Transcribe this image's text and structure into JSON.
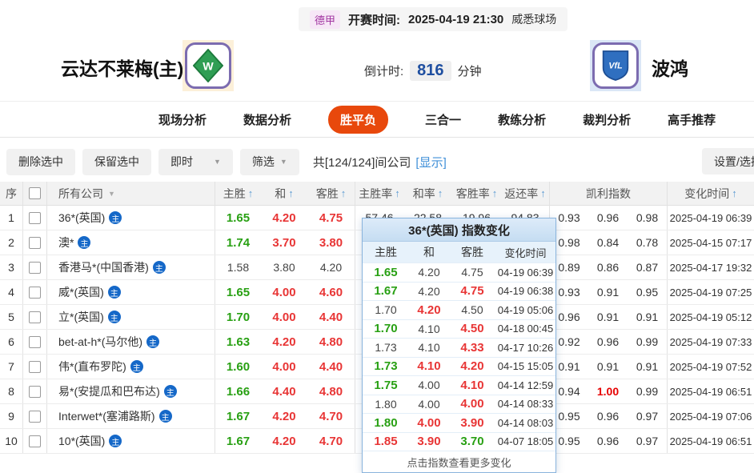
{
  "colors": {
    "accent_tab": "#e8480c",
    "odds_up_green": "#28a013",
    "odds_down_red": "#e83535",
    "kelly_red": "#e60000",
    "link_blue": "#3f8fd8",
    "badge_blue": "#1568c8",
    "countdown_blue": "#1f4fa0",
    "league_purple": "#a236a2"
  },
  "icons": {
    "sort_asc": "↑",
    "dropdown_arrow": "▼",
    "main_badge": "主"
  },
  "top_bar": {
    "league": "德甲",
    "kickoff_label": "开赛时间:",
    "kickoff_time": "2025-04-19 21:30",
    "venue": "威悉球场"
  },
  "match": {
    "home_name": "云达不莱梅(主)",
    "away_name": "波鸿",
    "countdown_label": "倒计时:",
    "countdown_value": "816",
    "countdown_unit": "分钟",
    "home_logo_text": "W",
    "away_logo_text": "VfL"
  },
  "tabs": [
    {
      "label": "现场分析",
      "active": false
    },
    {
      "label": "数据分析",
      "active": false
    },
    {
      "label": "胜平负",
      "active": true
    },
    {
      "label": "三合一",
      "active": false
    },
    {
      "label": "教练分析",
      "active": false
    },
    {
      "label": "裁判分析",
      "active": false
    },
    {
      "label": "高手推荐",
      "active": false
    }
  ],
  "toolbar": {
    "delete_selected": "删除选中",
    "keep_selected": "保留选中",
    "instant": "即时",
    "filter": "筛选",
    "company_count": "共[124/124]间公司",
    "show_link": "[显示]",
    "settings": "设置/选择"
  },
  "table": {
    "columns": {
      "seq": "序",
      "company": "所有公司",
      "odds": [
        "主胜",
        "和",
        "客胜"
      ],
      "rates": [
        "主胜率",
        "和率",
        "客胜率",
        "返还率"
      ],
      "kelly": "凯利指数",
      "time": "变化时间"
    },
    "rows": [
      {
        "num": "1",
        "company": "36*(英国)",
        "odds": [
          "1.65",
          "4.20",
          "4.75"
        ],
        "ocls": [
          "g",
          "r",
          "r"
        ],
        "rates": [
          "57.46",
          "22.58",
          "19.96",
          "94.83"
        ],
        "kelly": [
          "0.93",
          "0.96",
          "0.98"
        ],
        "kcls": [
          "n",
          "n",
          "n"
        ],
        "time": "2025-04-19 06:39"
      },
      {
        "num": "2",
        "company": "澳*",
        "odds": [
          "1.74",
          "3.70",
          "3.80"
        ],
        "ocls": [
          "g",
          "r",
          "r"
        ],
        "rates": [
          "",
          "",
          "",
          ""
        ],
        "kelly": [
          "0.98",
          "0.84",
          "0.78"
        ],
        "kcls": [
          "n",
          "n",
          "n"
        ],
        "time": "2025-04-15 07:17"
      },
      {
        "num": "3",
        "company": "香港马*(中国香港)",
        "odds": [
          "1.58",
          "3.80",
          "4.20"
        ],
        "ocls": [
          "n",
          "n",
          "n"
        ],
        "rates": [
          "",
          "",
          "",
          ""
        ],
        "kelly": [
          "0.89",
          "0.86",
          "0.87"
        ],
        "kcls": [
          "n",
          "n",
          "n"
        ],
        "time": "2025-04-17 19:32"
      },
      {
        "num": "4",
        "company": "威*(英国)",
        "odds": [
          "1.65",
          "4.00",
          "4.60"
        ],
        "ocls": [
          "g",
          "r",
          "r"
        ],
        "rates": [
          "",
          "",
          "",
          ""
        ],
        "kelly": [
          "0.93",
          "0.91",
          "0.95"
        ],
        "kcls": [
          "n",
          "n",
          "n"
        ],
        "time": "2025-04-19 07:25"
      },
      {
        "num": "5",
        "company": "立*(英国)",
        "odds": [
          "1.70",
          "4.00",
          "4.40"
        ],
        "ocls": [
          "g",
          "r",
          "r"
        ],
        "rates": [
          "",
          "",
          "",
          ""
        ],
        "kelly": [
          "0.96",
          "0.91",
          "0.91"
        ],
        "kcls": [
          "n",
          "n",
          "n"
        ],
        "time": "2025-04-19 05:12"
      },
      {
        "num": "6",
        "company": "bet-at-h*(马尔他)",
        "odds": [
          "1.63",
          "4.20",
          "4.80"
        ],
        "ocls": [
          "g",
          "r",
          "r"
        ],
        "rates": [
          "",
          "",
          "",
          ""
        ],
        "kelly": [
          "0.92",
          "0.96",
          "0.99"
        ],
        "kcls": [
          "n",
          "n",
          "n"
        ],
        "time": "2025-04-19 07:33"
      },
      {
        "num": "7",
        "company": "伟*(直布罗陀)",
        "odds": [
          "1.60",
          "4.00",
          "4.40"
        ],
        "ocls": [
          "g",
          "r",
          "r"
        ],
        "rates": [
          "",
          "",
          "",
          ""
        ],
        "kelly": [
          "0.91",
          "0.91",
          "0.91"
        ],
        "kcls": [
          "n",
          "n",
          "n"
        ],
        "time": "2025-04-19 07:52"
      },
      {
        "num": "8",
        "company": "易*(安提瓜和巴布达)",
        "odds": [
          "1.66",
          "4.40",
          "4.80"
        ],
        "ocls": [
          "g",
          "r",
          "r"
        ],
        "rates": [
          "",
          "",
          "",
          ""
        ],
        "kelly": [
          "0.94",
          "1.00",
          "0.99"
        ],
        "kcls": [
          "n",
          "r",
          "n"
        ],
        "time": "2025-04-19 06:51"
      },
      {
        "num": "9",
        "company": "Interwet*(塞浦路斯)",
        "odds": [
          "1.67",
          "4.20",
          "4.70"
        ],
        "ocls": [
          "g",
          "r",
          "r"
        ],
        "rates": [
          "",
          "",
          "",
          ""
        ],
        "kelly": [
          "0.95",
          "0.96",
          "0.97"
        ],
        "kcls": [
          "n",
          "n",
          "n"
        ],
        "time": "2025-04-19 07:06"
      },
      {
        "num": "10",
        "company": "10*(英国)",
        "odds": [
          "1.67",
          "4.20",
          "4.70"
        ],
        "ocls": [
          "g",
          "r",
          "r"
        ],
        "rates": [
          "",
          "",
          "",
          ""
        ],
        "kelly": [
          "0.95",
          "0.96",
          "0.97"
        ],
        "kcls": [
          "n",
          "n",
          "n"
        ],
        "time": "2025-04-19 06:51"
      }
    ]
  },
  "popup": {
    "title": "36*(英国) 指数变化",
    "columns": [
      "主胜",
      "和",
      "客胜",
      "变化时间"
    ],
    "rows": [
      {
        "vals": [
          "1.65",
          "4.20",
          "4.75"
        ],
        "cls": [
          "g",
          "n",
          "n"
        ],
        "time": "04-19 06:39"
      },
      {
        "vals": [
          "1.67",
          "4.20",
          "4.75"
        ],
        "cls": [
          "g",
          "n",
          "r"
        ],
        "time": "04-19 06:38"
      },
      {
        "vals": [
          "1.70",
          "4.20",
          "4.50"
        ],
        "cls": [
          "n",
          "r",
          "n"
        ],
        "time": "04-19 05:06"
      },
      {
        "vals": [
          "1.70",
          "4.10",
          "4.50"
        ],
        "cls": [
          "g",
          "n",
          "r"
        ],
        "time": "04-18 00:45"
      },
      {
        "vals": [
          "1.73",
          "4.10",
          "4.33"
        ],
        "cls": [
          "n",
          "n",
          "r"
        ],
        "time": "04-17 10:26"
      },
      {
        "vals": [
          "1.73",
          "4.10",
          "4.20"
        ],
        "cls": [
          "g",
          "r",
          "r"
        ],
        "time": "04-15 15:05"
      },
      {
        "vals": [
          "1.75",
          "4.00",
          "4.10"
        ],
        "cls": [
          "g",
          "n",
          "r"
        ],
        "time": "04-14 12:59"
      },
      {
        "vals": [
          "1.80",
          "4.00",
          "4.00"
        ],
        "cls": [
          "n",
          "n",
          "r"
        ],
        "time": "04-14 08:33"
      },
      {
        "vals": [
          "1.80",
          "4.00",
          "3.90"
        ],
        "cls": [
          "g",
          "r",
          "r"
        ],
        "time": "04-14 08:03"
      },
      {
        "vals": [
          "1.85",
          "3.90",
          "3.70"
        ],
        "cls": [
          "r",
          "r",
          "g"
        ],
        "time": "04-07 18:05"
      }
    ],
    "footer": "点击指数查看更多变化"
  }
}
